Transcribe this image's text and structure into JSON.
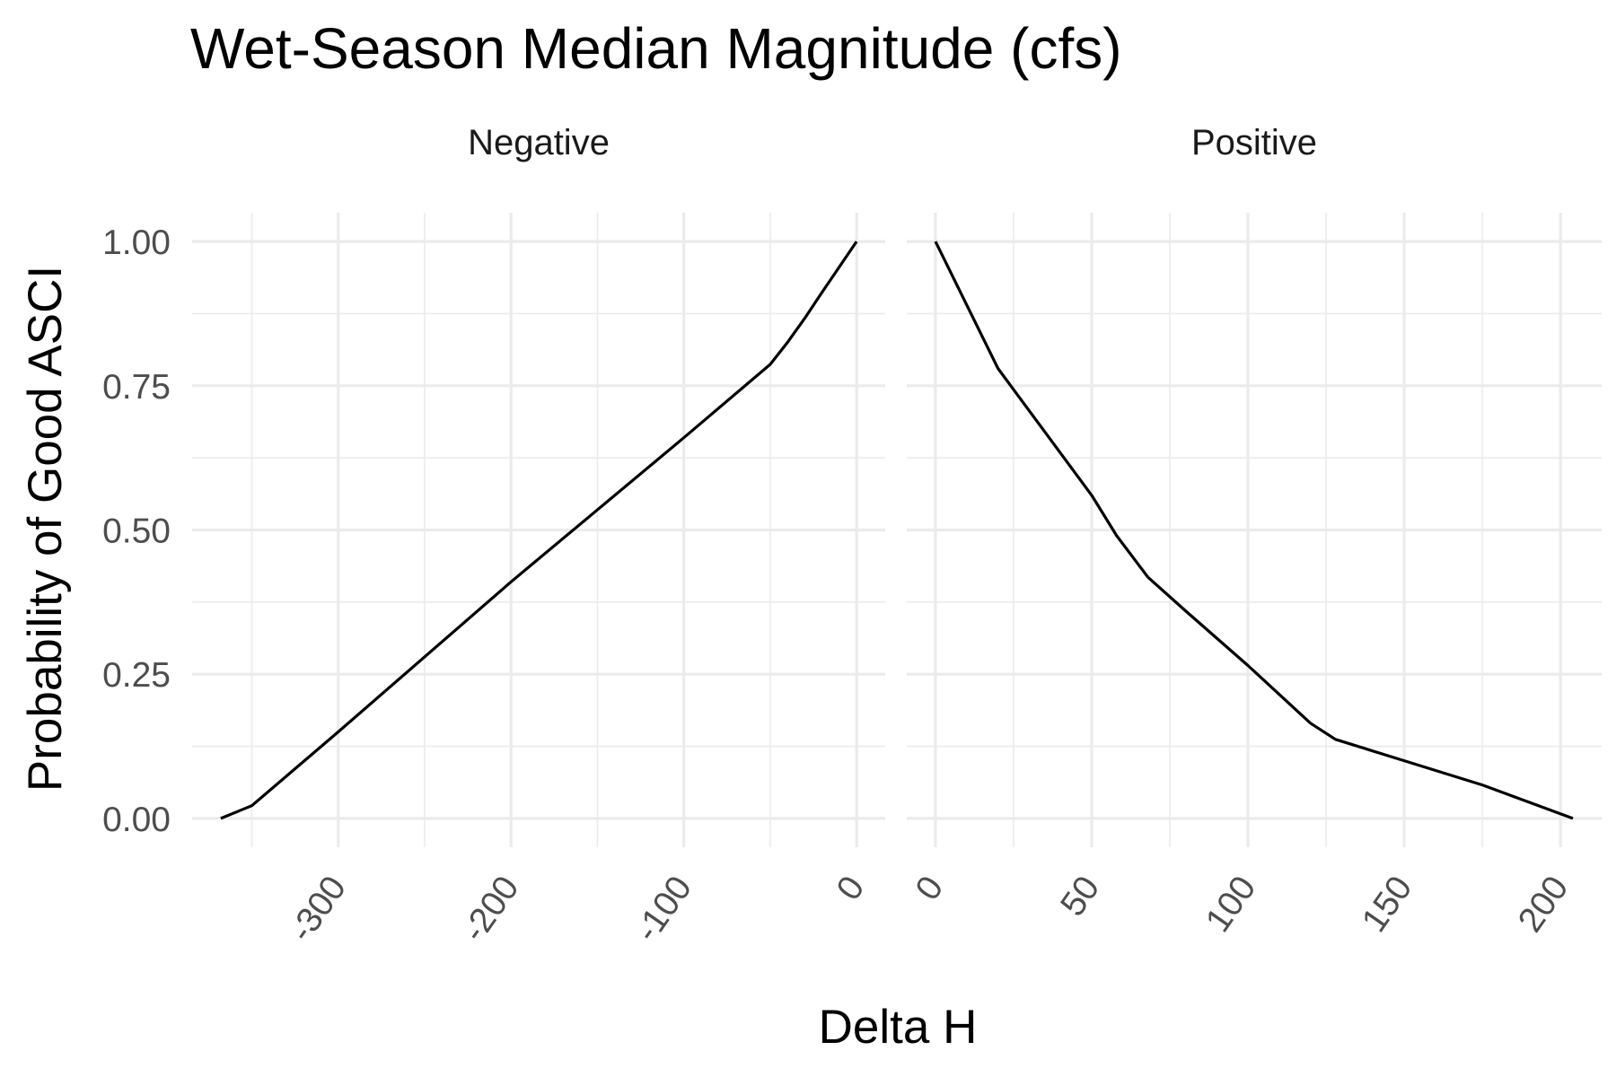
{
  "chart_data": {
    "type": "line",
    "title": "Wet-Season Median Magnitude (cfs)",
    "xlabel": "Delta H",
    "ylabel": "Probability of Good ASCI",
    "ylim": [
      0,
      1
    ],
    "y_ticks": [
      "0.00",
      "0.25",
      "0.50",
      "0.75",
      "1.00"
    ],
    "grid": true,
    "panels": [
      {
        "name": "Negative",
        "xlim": [
          -368,
          0
        ],
        "x_ticks": [
          "-300",
          "-200",
          "-100",
          "0"
        ],
        "x": [
          -368,
          -350,
          -300,
          -200,
          -100,
          -50,
          -40,
          -30,
          -20,
          -10,
          0
        ],
        "y": [
          0.0,
          0.022,
          0.15,
          0.41,
          0.66,
          0.787,
          0.825,
          0.867,
          0.912,
          0.956,
          1.0
        ]
      },
      {
        "name": "Positive",
        "xlim": [
          0,
          204
        ],
        "x_ticks": [
          "0",
          "50",
          "100",
          "150",
          "200"
        ],
        "x": [
          0,
          10,
          20,
          35,
          50,
          58,
          68,
          80,
          100,
          120,
          128,
          150,
          175,
          204
        ],
        "y": [
          1.0,
          0.89,
          0.78,
          0.67,
          0.56,
          0.49,
          0.418,
          0.36,
          0.265,
          0.165,
          0.137,
          0.1,
          0.058,
          0.0
        ]
      }
    ]
  }
}
